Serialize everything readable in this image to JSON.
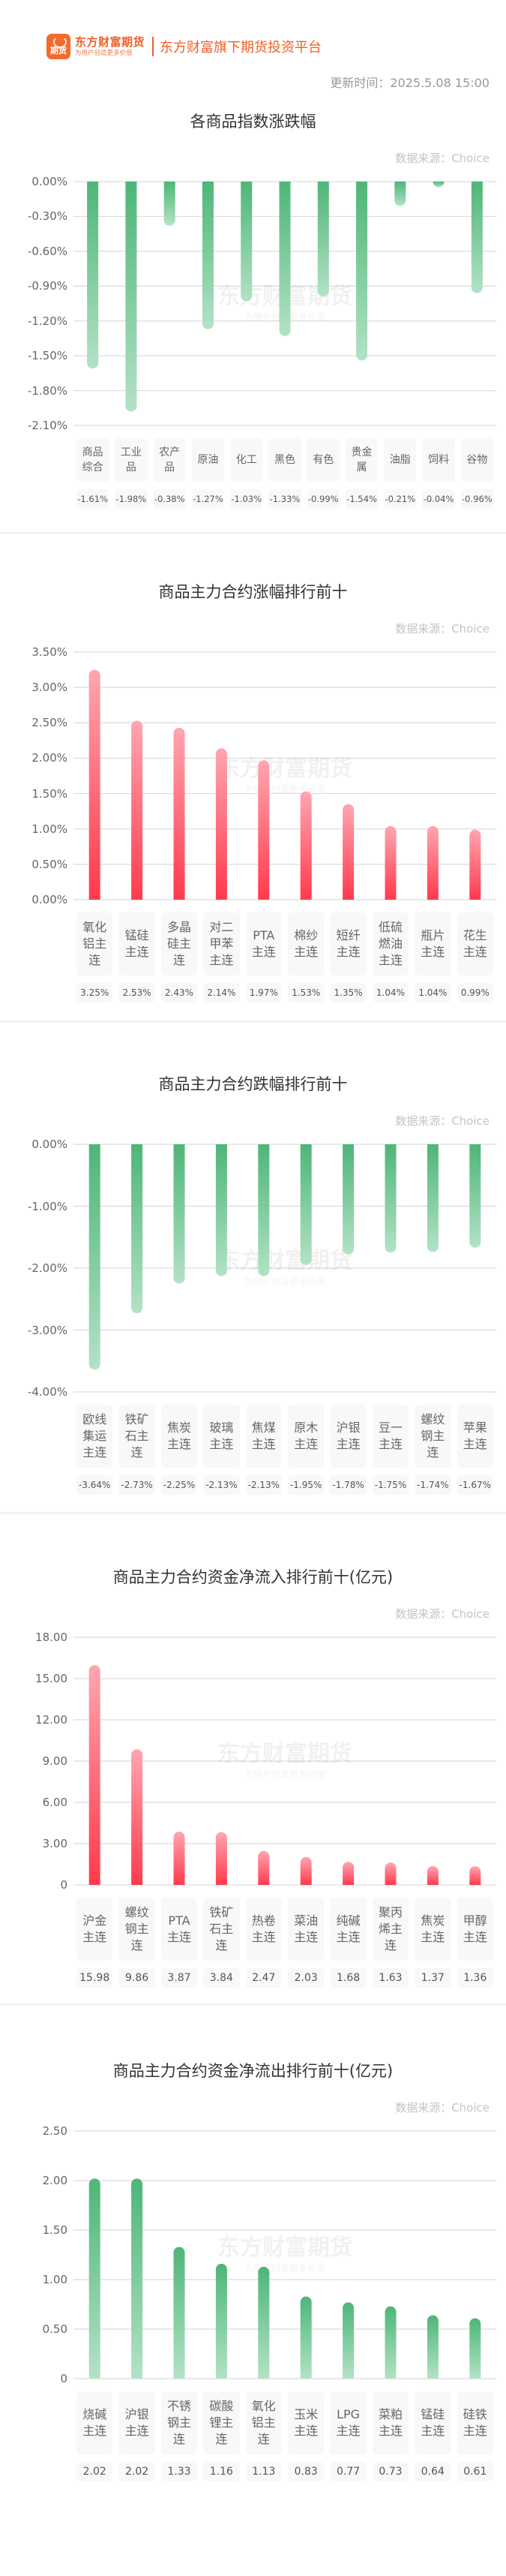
{
  "header": {
    "logo_text": "期货",
    "brand_name": "东方财富期货",
    "brand_slogan": "为用户创造更多价值",
    "platform": "东方财富旗下期货投资平台",
    "update_time": "更新时间：2025.5.08 15:00"
  },
  "watermark": {
    "name": "东方财富期货",
    "slogan": "为用户创造更多价值"
  },
  "colors": {
    "brand": "#f05f28",
    "down_bar": "#4db677",
    "up_bar": "#ff3a4c",
    "label_bg": "#f8f8f8"
  },
  "chart_data": [
    {
      "type": "bar",
      "title": "各商品指数涨跌幅",
      "source": "数据来源：Choice",
      "color": "green",
      "unit": "%",
      "categories": [
        "商品综合",
        "工业品",
        "农产品",
        "原油",
        "化工",
        "黑色",
        "有色",
        "贵金属",
        "油脂",
        "饲料",
        "谷物"
      ],
      "values": [
        -1.61,
        -1.98,
        -0.38,
        -1.27,
        -1.03,
        -1.33,
        -0.99,
        -1.54,
        -0.21,
        -0.04,
        -0.96
      ],
      "value_labels": [
        "-1.61%",
        "-1.98%",
        "-0.38%",
        "-1.27%",
        "-1.03%",
        "-1.33%",
        "-0.99%",
        "-1.54%",
        "-0.21%",
        "-0.04%",
        "-0.96%"
      ],
      "yticks": [
        "0.00%",
        "-0.30%",
        "-0.60%",
        "-0.90%",
        "-1.20%",
        "-1.50%",
        "-1.80%",
        "-2.10%"
      ],
      "ylim": [
        -2.1,
        0
      ],
      "grid": true
    },
    {
      "type": "bar",
      "title": "商品主力合约涨幅排行前十",
      "source": "数据来源：Choice",
      "color": "red",
      "unit": "%",
      "categories": [
        "氧化铝主连",
        "锰硅主连",
        "多晶硅主连",
        "对二甲苯主连",
        "PTA主连",
        "棉纱主连",
        "短纤主连",
        "低硫燃油主连",
        "瓶片主连",
        "花生主连"
      ],
      "values": [
        3.25,
        2.53,
        2.43,
        2.14,
        1.97,
        1.53,
        1.35,
        1.04,
        1.04,
        0.99
      ],
      "value_labels": [
        "3.25%",
        "2.53%",
        "2.43%",
        "2.14%",
        "1.97%",
        "1.53%",
        "1.35%",
        "1.04%",
        "1.04%",
        "0.99%"
      ],
      "yticks": [
        "3.50%",
        "3.00%",
        "2.50%",
        "2.00%",
        "1.50%",
        "1.00%",
        "0.50%",
        "0.00%"
      ],
      "ylim": [
        0,
        3.5
      ],
      "grid": true
    },
    {
      "type": "bar",
      "title": "商品主力合约跌幅排行前十",
      "source": "数据来源：Choice",
      "color": "green",
      "unit": "%",
      "categories": [
        "欧线集运主连",
        "铁矿石主连",
        "焦炭主连",
        "玻璃主连",
        "焦煤主连",
        "原木主连",
        "沪银主连",
        "豆一主连",
        "螺纹钢主连",
        "苹果主连"
      ],
      "values": [
        -3.64,
        -2.73,
        -2.25,
        -2.13,
        -2.13,
        -1.95,
        -1.78,
        -1.75,
        -1.74,
        -1.67
      ],
      "value_labels": [
        "-3.64%",
        "-2.73%",
        "-2.25%",
        "-2.13%",
        "-2.13%",
        "-1.95%",
        "-1.78%",
        "-1.75%",
        "-1.74%",
        "-1.67%"
      ],
      "yticks": [
        "0.00%",
        "-1.00%",
        "-2.00%",
        "-3.00%",
        "-4.00%"
      ],
      "ylim": [
        -4,
        0
      ],
      "grid": true
    },
    {
      "type": "bar",
      "title": "商品主力合约资金净流入排行前十(亿元)",
      "source": "数据来源：Choice",
      "color": "red",
      "unit": "亿元",
      "categories": [
        "沪金主连",
        "螺纹钢主连",
        "PTA主连",
        "铁矿石主连",
        "热卷主连",
        "菜油主连",
        "纯碱主连",
        "聚丙烯主连",
        "焦炭主连",
        "甲醇主连"
      ],
      "values": [
        15.98,
        9.86,
        3.87,
        3.84,
        2.47,
        2.03,
        1.68,
        1.63,
        1.37,
        1.36
      ],
      "value_labels": [
        "15.98",
        "9.86",
        "3.87",
        "3.84",
        "2.47",
        "2.03",
        "1.68",
        "1.63",
        "1.37",
        "1.36"
      ],
      "yticks": [
        "18.00",
        "15.00",
        "12.00",
        "9.00",
        "6.00",
        "3.00",
        "0"
      ],
      "ylim": [
        0,
        18
      ],
      "grid": true
    },
    {
      "type": "bar",
      "title": "商品主力合约资金净流出排行前十(亿元)",
      "source": "数据来源：Choice",
      "color": "green",
      "unit": "亿元",
      "categories": [
        "烧碱主连",
        "沪银主连",
        "不锈钢主连",
        "碳酸锂主连",
        "氧化铝主连",
        "玉米主连",
        "LPG主连",
        "菜粕主连",
        "锰硅主连",
        "硅铁主连"
      ],
      "values": [
        2.02,
        2.02,
        1.33,
        1.16,
        1.13,
        0.83,
        0.77,
        0.73,
        0.64,
        0.61
      ],
      "value_labels": [
        "2.02",
        "2.02",
        "1.33",
        "1.16",
        "1.13",
        "0.83",
        "0.77",
        "0.73",
        "0.64",
        "0.61"
      ],
      "yticks": [
        "2.50",
        "2.00",
        "1.50",
        "1.00",
        "0.50",
        "0"
      ],
      "ylim": [
        0,
        2.5
      ],
      "grid": true
    }
  ]
}
